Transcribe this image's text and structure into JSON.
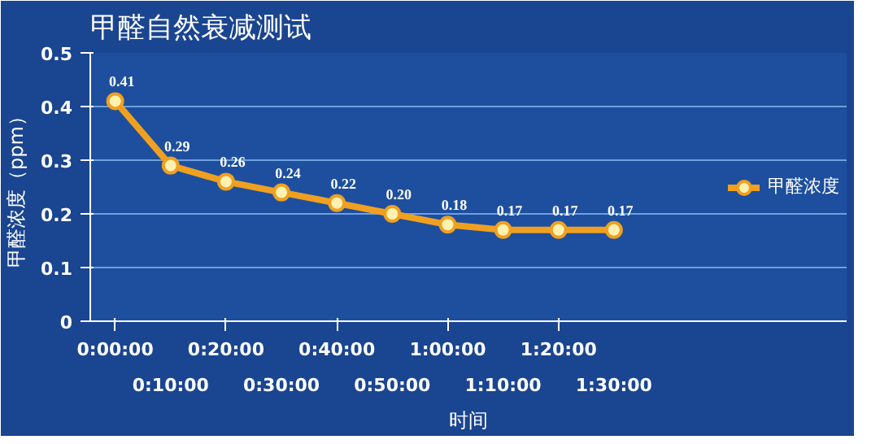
{
  "chart_data": {
    "type": "line",
    "title": "甲醛自然衰减测试",
    "xlabel": "时间",
    "ylabel": "甲醛浓度（ppm）",
    "categories": [
      "0:00:00",
      "0:10:00",
      "0:20:00",
      "0:30:00",
      "0:40:00",
      "0:50:00",
      "1:00:00",
      "1:10:00",
      "1:20:00",
      "1:30:00"
    ],
    "series": [
      {
        "name": "甲醛浓度",
        "color": "#f0a020",
        "values": [
          0.41,
          0.29,
          0.26,
          0.24,
          0.22,
          0.2,
          0.18,
          0.17,
          0.17,
          0.17
        ],
        "value_labels": [
          "0.41",
          "0.29",
          "0.26",
          "0.24",
          "0.22",
          "0.20",
          "0.18",
          "0.17",
          "0.17",
          "0.17"
        ]
      }
    ],
    "ylim": [
      0,
      0.5
    ],
    "yticks": [
      0,
      0.1,
      0.2,
      0.3,
      0.4,
      0.5
    ],
    "grid": "y",
    "legend": "right",
    "marker": "circle",
    "line_style": "solid"
  }
}
